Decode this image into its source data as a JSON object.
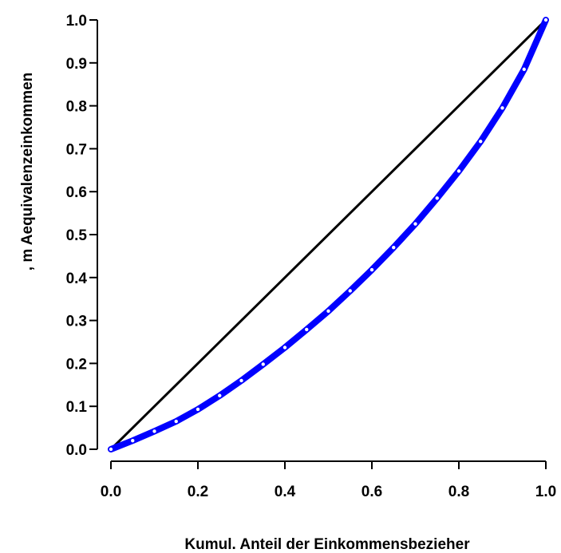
{
  "chart_data": {
    "type": "line",
    "title": "",
    "xlabel": "Kumul. Anteil der Einkommensbezieher",
    "ylabel": ", m Aequivalenzeinkommen",
    "xlim": [
      0.0,
      1.0
    ],
    "ylim": [
      0.0,
      1.0
    ],
    "x_ticks": [
      "0.0",
      "0.2",
      "0.4",
      "0.6",
      "0.8",
      "1.0"
    ],
    "y_ticks": [
      "0.0",
      "0.1",
      "0.2",
      "0.3",
      "0.4",
      "0.5",
      "0.6",
      "0.7",
      "0.8",
      "0.9",
      "1.0"
    ],
    "grid": false,
    "series": [
      {
        "color": "#000000",
        "x": [
          0.0,
          1.0
        ],
        "y": [
          0.0,
          1.0
        ]
      },
      {
        "color": "#0000ff",
        "x": [
          0.0,
          0.05,
          0.1,
          0.15,
          0.2,
          0.25,
          0.3,
          0.35,
          0.4,
          0.45,
          0.5,
          0.55,
          0.6,
          0.65,
          0.7,
          0.75,
          0.8,
          0.85,
          0.9,
          0.95,
          1.0
        ],
        "y": [
          0.0,
          0.02,
          0.042,
          0.065,
          0.093,
          0.125,
          0.16,
          0.198,
          0.237,
          0.279,
          0.322,
          0.369,
          0.418,
          0.47,
          0.525,
          0.585,
          0.648,
          0.717,
          0.795,
          0.885,
          1.0
        ]
      }
    ]
  }
}
